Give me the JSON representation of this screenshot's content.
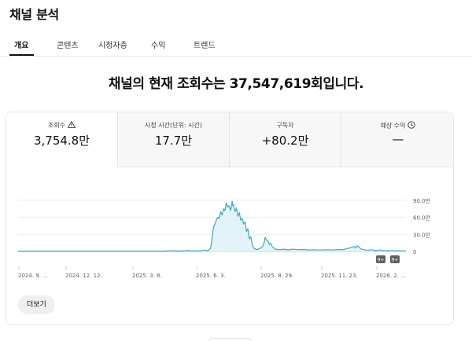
{
  "page": {
    "title": "채널 분석"
  },
  "tabs": [
    {
      "label": "개요",
      "active": true
    },
    {
      "label": "콘텐츠",
      "active": false
    },
    {
      "label": "시청자층",
      "active": false
    },
    {
      "label": "수익",
      "active": false
    },
    {
      "label": "트렌드",
      "active": false
    }
  ],
  "headline": "채널의 현재 조회수는 37,547,619회입니다.",
  "metrics": [
    {
      "label": "조회수",
      "value": "3,754.8만",
      "icon": "warning-icon",
      "active": true
    },
    {
      "label": "시청 시간(단위: 시간)",
      "value": "17.7만",
      "icon": "",
      "active": false
    },
    {
      "label": "구독자",
      "value": "+80.2만",
      "icon": "",
      "active": false
    },
    {
      "label": "예상 수익",
      "value": "—",
      "icon": "clock-icon",
      "active": false
    }
  ],
  "colors": {
    "line": "#3ea6c3",
    "fill": "#e3f3f8",
    "accent": "#0f0f0f"
  },
  "chart_data": {
    "type": "area",
    "x_ticks": [
      "2024. 9. ...",
      "2024. 12. 12.",
      "2025. 3. 8.",
      "2025. 6. 3.",
      "2025. 8. 29.",
      "2025. 11. 23.",
      "2026. 2. ..."
    ],
    "y_ticks": [
      "90.0만",
      "60.0만",
      "30.0만",
      "0"
    ],
    "ylim": [
      0,
      100
    ],
    "y_unit": "만",
    "x_range": [
      0,
      540
    ],
    "points": [
      [
        0,
        0.5
      ],
      [
        200,
        0.5
      ],
      [
        218,
        1.2
      ],
      [
        224,
        0.5
      ],
      [
        236,
        1.8
      ],
      [
        242,
        0.8
      ],
      [
        254,
        1.0
      ],
      [
        260,
        2.5
      ],
      [
        264,
        1.2
      ],
      [
        268,
        5
      ],
      [
        270,
        22
      ],
      [
        272,
        42
      ],
      [
        274,
        48
      ],
      [
        276,
        55
      ],
      [
        278,
        60
      ],
      [
        280,
        58
      ],
      [
        282,
        70
      ],
      [
        284,
        64
      ],
      [
        286,
        75
      ],
      [
        288,
        72
      ],
      [
        290,
        85
      ],
      [
        292,
        78
      ],
      [
        294,
        80
      ],
      [
        296,
        72
      ],
      [
        298,
        88
      ],
      [
        299,
        80
      ],
      [
        300,
        82
      ],
      [
        302,
        70
      ],
      [
        304,
        76
      ],
      [
        306,
        62
      ],
      [
        308,
        68
      ],
      [
        310,
        55
      ],
      [
        312,
        58
      ],
      [
        314,
        48
      ],
      [
        316,
        52
      ],
      [
        318,
        35
      ],
      [
        320,
        40
      ],
      [
        322,
        22
      ],
      [
        324,
        26
      ],
      [
        326,
        12
      ],
      [
        328,
        6
      ],
      [
        332,
        3
      ],
      [
        336,
        5
      ],
      [
        340,
        8
      ],
      [
        342,
        12
      ],
      [
        344,
        25
      ],
      [
        346,
        20
      ],
      [
        348,
        18
      ],
      [
        350,
        12
      ],
      [
        352,
        14
      ],
      [
        354,
        8
      ],
      [
        358,
        4
      ],
      [
        364,
        3
      ],
      [
        370,
        4
      ],
      [
        376,
        2.5
      ],
      [
        382,
        4
      ],
      [
        390,
        3
      ],
      [
        398,
        3.5
      ],
      [
        404,
        2.5
      ],
      [
        412,
        3
      ],
      [
        420,
        2.5
      ],
      [
        430,
        3
      ],
      [
        438,
        2.5
      ],
      [
        446,
        3.5
      ],
      [
        452,
        3
      ],
      [
        458,
        5
      ],
      [
        464,
        7
      ],
      [
        468,
        9
      ],
      [
        470,
        6
      ],
      [
        472,
        10
      ],
      [
        474,
        8
      ],
      [
        476,
        6
      ],
      [
        478,
        4
      ],
      [
        482,
        3
      ],
      [
        486,
        2
      ],
      [
        492,
        3
      ],
      [
        498,
        1.5
      ],
      [
        504,
        2.5
      ],
      [
        510,
        1.5
      ],
      [
        540,
        1
      ]
    ],
    "event_markers": [
      "9+",
      "9+"
    ]
  },
  "buttons": {
    "more_label": "더보기"
  }
}
